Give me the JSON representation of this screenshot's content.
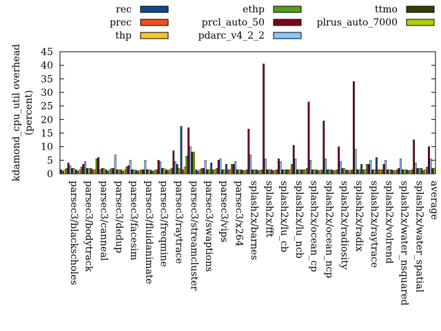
{
  "chart_data": {
    "type": "bar",
    "ylabel": "kdamond_cpu_util overhead (percent)",
    "ylabel_lines": [
      "kdamond_cpu_util overhead",
      "(percent)"
    ],
    "ylim": [
      0,
      45
    ],
    "yticks": [
      "0",
      "5",
      "10",
      "15",
      "20",
      "25",
      "30",
      "35",
      "40",
      "45"
    ],
    "legend_position": "top",
    "categories": [
      "parsec3/blackscholes",
      "parsec3/bodytrack",
      "parsec3/canneal",
      "parsec3/dedup",
      "parsec3/facesim",
      "parsec3/fluidanimate",
      "parsec3/freqmine",
      "parsec3/raytrace",
      "parsec3/streamcluster",
      "parsec3/swaptions",
      "parsec3/vips",
      "parsec3/x264",
      "splash2x/barnes",
      "splash2x/fft",
      "splash2x/lu_cb",
      "splash2x/lu_ncb",
      "splash2x/ocean_cp",
      "splash2x/ocean_ncp",
      "splash2x/radiosity",
      "splash2x/radix",
      "splash2x/raytrace",
      "splash2x/volrend",
      "splash2x/water_nsquared",
      "splash2x/water_spatial",
      "average"
    ],
    "series": [
      {
        "name": "rec",
        "color": "#0b4d8c",
        "values": [
          1.5,
          1.5,
          2.0,
          1.5,
          1.5,
          1.3,
          1.3,
          1.5,
          17.5,
          1.5,
          4.0,
          3.5,
          1.5,
          1.5,
          1.5,
          1.5,
          1.5,
          1.5,
          1.5,
          1.5,
          3.5,
          6.0,
          1.5,
          1.5,
          2.0
        ]
      },
      {
        "name": "prec",
        "color": "#f24f1e",
        "values": [
          1.0,
          1.0,
          1.5,
          1.0,
          1.0,
          1.0,
          1.0,
          1.2,
          1.5,
          1.0,
          1.5,
          1.5,
          1.2,
          1.2,
          1.2,
          1.5,
          1.5,
          1.2,
          1.2,
          1.2,
          1.5,
          1.5,
          1.2,
          1.2,
          1.2
        ]
      },
      {
        "name": "thp",
        "color": "#f6c624",
        "values": [
          1.5,
          1.5,
          1.5,
          1.5,
          1.5,
          1.3,
          1.3,
          1.5,
          2.5,
          1.5,
          1.5,
          1.5,
          1.2,
          1.2,
          1.2,
          1.5,
          1.5,
          1.2,
          1.2,
          1.2,
          1.5,
          1.5,
          1.2,
          1.2,
          1.5
        ]
      },
      {
        "name": "ethp",
        "color": "#579d1c",
        "values": [
          2.0,
          2.5,
          5.5,
          2.0,
          2.5,
          1.5,
          1.5,
          2.0,
          6.5,
          2.0,
          2.0,
          3.5,
          1.5,
          1.5,
          1.5,
          3.5,
          2.0,
          1.5,
          1.5,
          1.5,
          3.5,
          1.5,
          1.5,
          1.5,
          2.5
        ]
      },
      {
        "name": "prcl_auto_50",
        "color": "#7e0021",
        "values": [
          4.0,
          3.5,
          6.0,
          2.0,
          3.0,
          1.5,
          5.0,
          8.5,
          17.0,
          2.0,
          5.0,
          3.5,
          16.5,
          40.5,
          5.5,
          10.5,
          26.5,
          19.5,
          10.0,
          34.0,
          3.5,
          3.5,
          2.0,
          12.5,
          10.0
        ]
      },
      {
        "name": "pdarc_v4_2_2",
        "color": "#83caff",
        "values": [
          3.0,
          4.5,
          1.5,
          7.0,
          5.0,
          5.0,
          4.5,
          4.5,
          10.0,
          5.0,
          5.5,
          4.5,
          7.0,
          5.5,
          4.5,
          5.5,
          5.0,
          5.5,
          4.5,
          9.0,
          5.0,
          5.0,
          5.5,
          4.0,
          5.5
        ]
      },
      {
        "name": "ttmo",
        "color": "#314004",
        "values": [
          2.0,
          2.0,
          2.0,
          1.5,
          1.5,
          1.5,
          2.0,
          3.5,
          8.0,
          1.5,
          1.5,
          1.5,
          1.5,
          1.5,
          1.5,
          1.5,
          1.5,
          1.5,
          2.0,
          1.5,
          1.5,
          1.5,
          1.5,
          2.0,
          2.0
        ]
      },
      {
        "name": "plrus_auto_7000",
        "color": "#aecf00",
        "values": [
          2.0,
          2.0,
          2.0,
          1.5,
          1.5,
          1.5,
          2.0,
          2.0,
          8.0,
          1.5,
          1.5,
          1.5,
          1.5,
          1.5,
          1.5,
          1.5,
          1.5,
          1.5,
          2.0,
          1.5,
          1.5,
          1.5,
          1.5,
          2.0,
          2.0
        ]
      }
    ]
  }
}
